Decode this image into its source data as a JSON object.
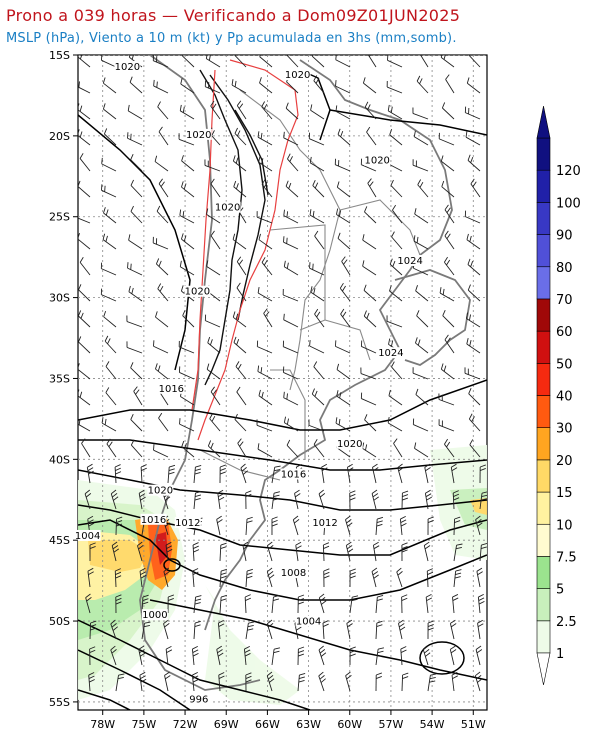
{
  "title": "Prono a 039 horas — Verificando a Dom09Z01JUN2025",
  "subtitle": "MSLP (hPa), Viento a 10 m (kt) y Pp acumulada en 3hs (mm,somb).",
  "lat_labels": [
    "15S",
    "20S",
    "25S",
    "30S",
    "35S",
    "40S",
    "45S",
    "50S",
    "55S"
  ],
  "lon_labels": [
    "78W",
    "75W",
    "72W",
    "69W",
    "66W",
    "63W",
    "60W",
    "57W",
    "54W",
    "51W"
  ],
  "colorbar": {
    "levels": [
      "1",
      "2.5",
      "5",
      "7.5",
      "10",
      "15",
      "20",
      "30",
      "40",
      "50",
      "60",
      "70",
      "80",
      "90",
      "100",
      "120"
    ],
    "colors": [
      "#eefbe8",
      "#c8f0bc",
      "#9be38e",
      "#fffbd0",
      "#fff2a0",
      "#ffd966",
      "#ffa520",
      "#ff5a10",
      "#f52a10",
      "#d01010",
      "#a00808",
      "#6a6ee8",
      "#5050d8",
      "#3838c4",
      "#2020a8",
      "#101080"
    ]
  },
  "isobar_labels": [
    {
      "text": "1020",
      "lon": -76.2,
      "lat": -15.8
    },
    {
      "text": "1020",
      "lon": -63.8,
      "lat": -16.3
    },
    {
      "text": "1020",
      "lon": -71.0,
      "lat": -20.0
    },
    {
      "text": "1020",
      "lon": -58.0,
      "lat": -21.6
    },
    {
      "text": "1020",
      "lon": -68.9,
      "lat": -24.5
    },
    {
      "text": "1024",
      "lon": -55.6,
      "lat": -27.8
    },
    {
      "text": "1020",
      "lon": -71.1,
      "lat": -29.7
    },
    {
      "text": "1024",
      "lon": -57.0,
      "lat": -33.5
    },
    {
      "text": "1016",
      "lon": -73.0,
      "lat": -35.7
    },
    {
      "text": "1020",
      "lon": -60.0,
      "lat": -39.1
    },
    {
      "text": "1016",
      "lon": -64.1,
      "lat": -41.0
    },
    {
      "text": "1020",
      "lon": -73.8,
      "lat": -42.0
    },
    {
      "text": "1016",
      "lon": -74.3,
      "lat": -43.8
    },
    {
      "text": "1012",
      "lon": -71.8,
      "lat": -44.0
    },
    {
      "text": "1012",
      "lon": -61.8,
      "lat": -44.0
    },
    {
      "text": "1004",
      "lon": -79.1,
      "lat": -44.8
    },
    {
      "text": "1008",
      "lon": -64.1,
      "lat": -47.1
    },
    {
      "text": "1000",
      "lon": -74.2,
      "lat": -49.7
    },
    {
      "text": "1004",
      "lon": -63.0,
      "lat": -50.1
    },
    {
      "text": "996",
      "lon": -71.0,
      "lat": -54.9
    }
  ]
}
